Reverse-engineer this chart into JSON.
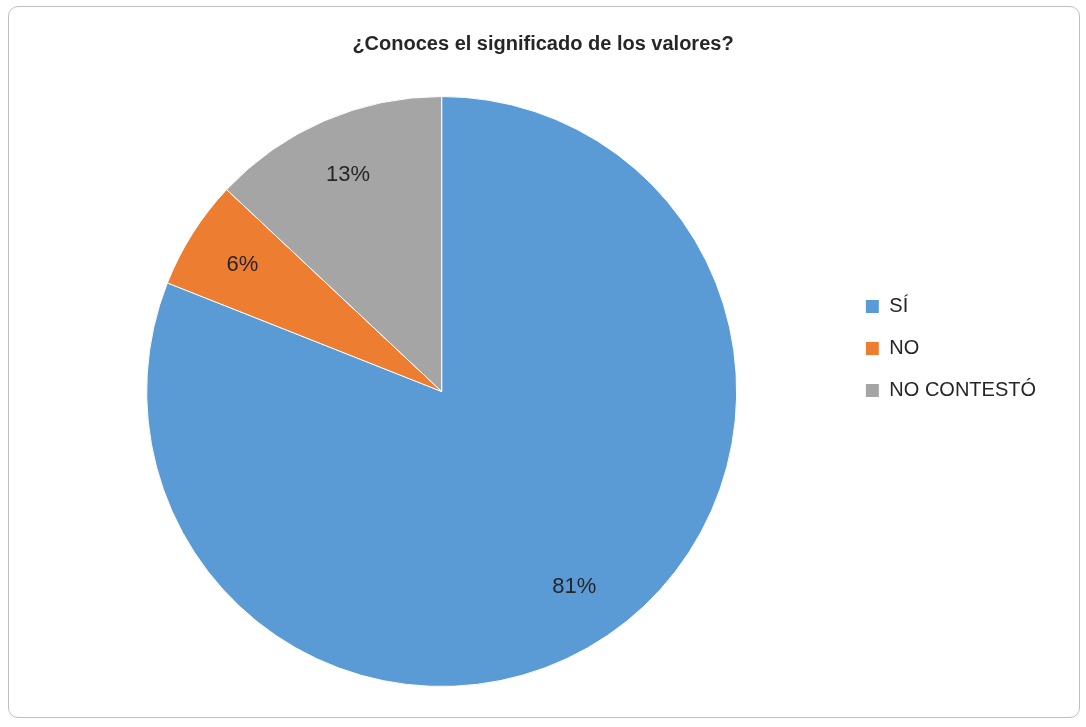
{
  "chart_data": {
    "type": "pie",
    "title": "¿Conoces el significado de los valores?",
    "categories": [
      "SÍ",
      "NO",
      "NO CONTESTÓ"
    ],
    "values": [
      81,
      6,
      13
    ],
    "colors": [
      "#5b9bd5",
      "#ed7d31",
      "#a5a5a5"
    ],
    "value_labels": [
      "81%",
      "6%",
      "13%"
    ],
    "legend": "right"
  }
}
